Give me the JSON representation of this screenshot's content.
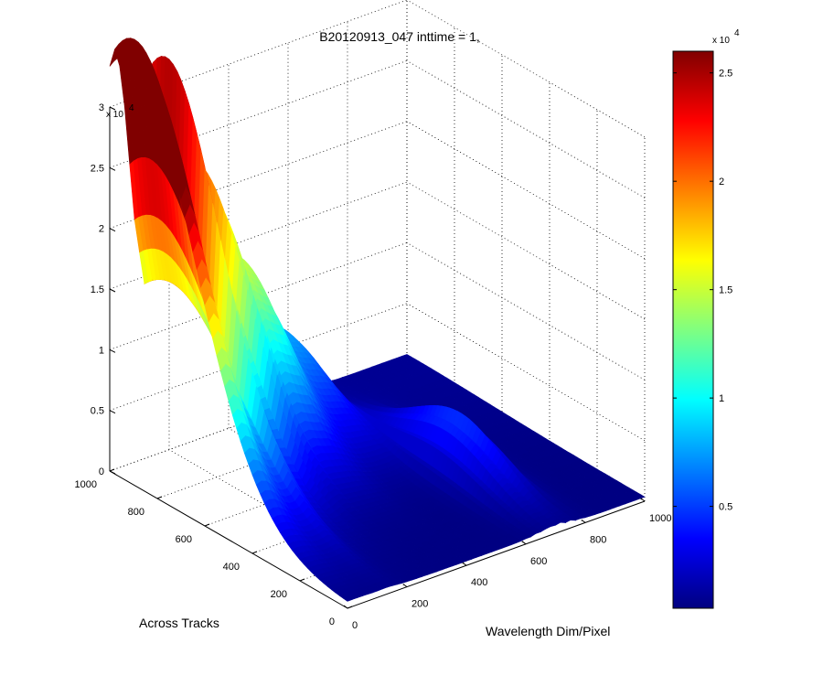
{
  "chart_data": {
    "type": "surface",
    "title": "B20120913_047 inttime = 1,",
    "xlabel": "Wavelength Dim/Pixel",
    "ylabel": "Across Tracks",
    "zlabel": "",
    "xlim": [
      0,
      1000
    ],
    "ylim": [
      0,
      1000
    ],
    "zlim": [
      0,
      30000
    ],
    "x_ticks": [
      "0",
      "200",
      "400",
      "600",
      "800",
      "1000"
    ],
    "y_ticks": [
      "0",
      "200",
      "400",
      "600",
      "800",
      "1000"
    ],
    "z_ticks": [
      "0",
      "0.5",
      "1",
      "1.5",
      "2",
      "2.5",
      "3"
    ],
    "z_multiplier": "x 10",
    "z_multiplier_exp": "4",
    "grid": true,
    "colormap": "jet",
    "colorbar": {
      "range": [
        300,
        26000
      ],
      "ticks": [
        "0.5",
        "1",
        "1.5",
        "2",
        "2.5"
      ],
      "multiplier": "x 10",
      "multiplier_exp": "4"
    },
    "peaks": [
      {
        "wavelength_pixel": 20,
        "across_track": 930,
        "value": 30000
      },
      {
        "wavelength_pixel": 140,
        "across_track": 950,
        "value": 20500
      },
      {
        "wavelength_pixel": 210,
        "across_track": 950,
        "value": 18800
      },
      {
        "wavelength_pixel": 300,
        "across_track": 950,
        "value": 13600
      },
      {
        "wavelength_pixel": 390,
        "across_track": 950,
        "value": 11000
      },
      {
        "wavelength_pixel": 430,
        "across_track": 950,
        "value": 9300
      },
      {
        "wavelength_pixel": 550,
        "across_track": 950,
        "value": 6200
      },
      {
        "wavelength_pixel": 710,
        "across_track": 420,
        "value": 5000
      }
    ]
  },
  "colors": {
    "background": "#ffffff",
    "jet_low": "#00008f",
    "jet_high": "#800000"
  }
}
